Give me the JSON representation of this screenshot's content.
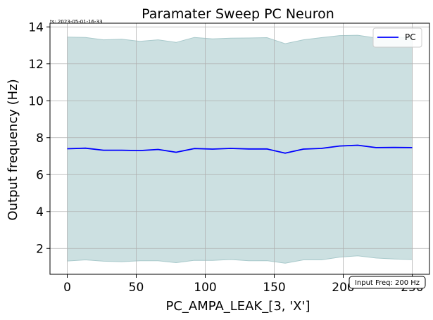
{
  "chart_data": {
    "type": "line",
    "title": "Paramater Sweep PC Neuron",
    "timestamp": "ts: 2023-05-01-16-33",
    "xlabel": "PC_AMPA_LEAK_[3, 'X']",
    "ylabel": "Output frequency (Hz)",
    "xlim": [
      -12.5,
      262.5
    ],
    "ylim": [
      0.6,
      14.2
    ],
    "xticks": [
      0,
      50,
      100,
      150,
      200,
      250
    ],
    "yticks": [
      2,
      4,
      6,
      8,
      10,
      12,
      14
    ],
    "grid": true,
    "legend": {
      "position": "top-right"
    },
    "annotation": "Input Freq: 200 Hz",
    "x": [
      0,
      13.2,
      26.3,
      39.5,
      52.6,
      65.8,
      78.9,
      92.1,
      105.3,
      118.4,
      131.6,
      144.7,
      157.9,
      171.1,
      184.2,
      197.4,
      210.5,
      223.7,
      236.8,
      250
    ],
    "series": [
      {
        "name": "PC",
        "color": "#0000ff",
        "values": [
          7.4,
          7.43,
          7.32,
          7.32,
          7.3,
          7.36,
          7.21,
          7.41,
          7.38,
          7.42,
          7.39,
          7.39,
          7.16,
          7.38,
          7.42,
          7.55,
          7.59,
          7.46,
          7.47,
          7.46
        ],
        "band_color": "#cce0e1",
        "band_edge_color": "#a8c9cb",
        "band_upper": [
          13.45,
          13.43,
          13.3,
          13.33,
          13.22,
          13.3,
          13.16,
          13.43,
          13.35,
          13.39,
          13.4,
          13.42,
          13.09,
          13.3,
          13.42,
          13.53,
          13.55,
          13.4,
          13.44,
          13.41
        ],
        "band_lower": [
          1.32,
          1.38,
          1.31,
          1.28,
          1.33,
          1.33,
          1.23,
          1.36,
          1.35,
          1.4,
          1.33,
          1.34,
          1.2,
          1.38,
          1.38,
          1.53,
          1.6,
          1.48,
          1.43,
          1.4
        ]
      }
    ]
  }
}
